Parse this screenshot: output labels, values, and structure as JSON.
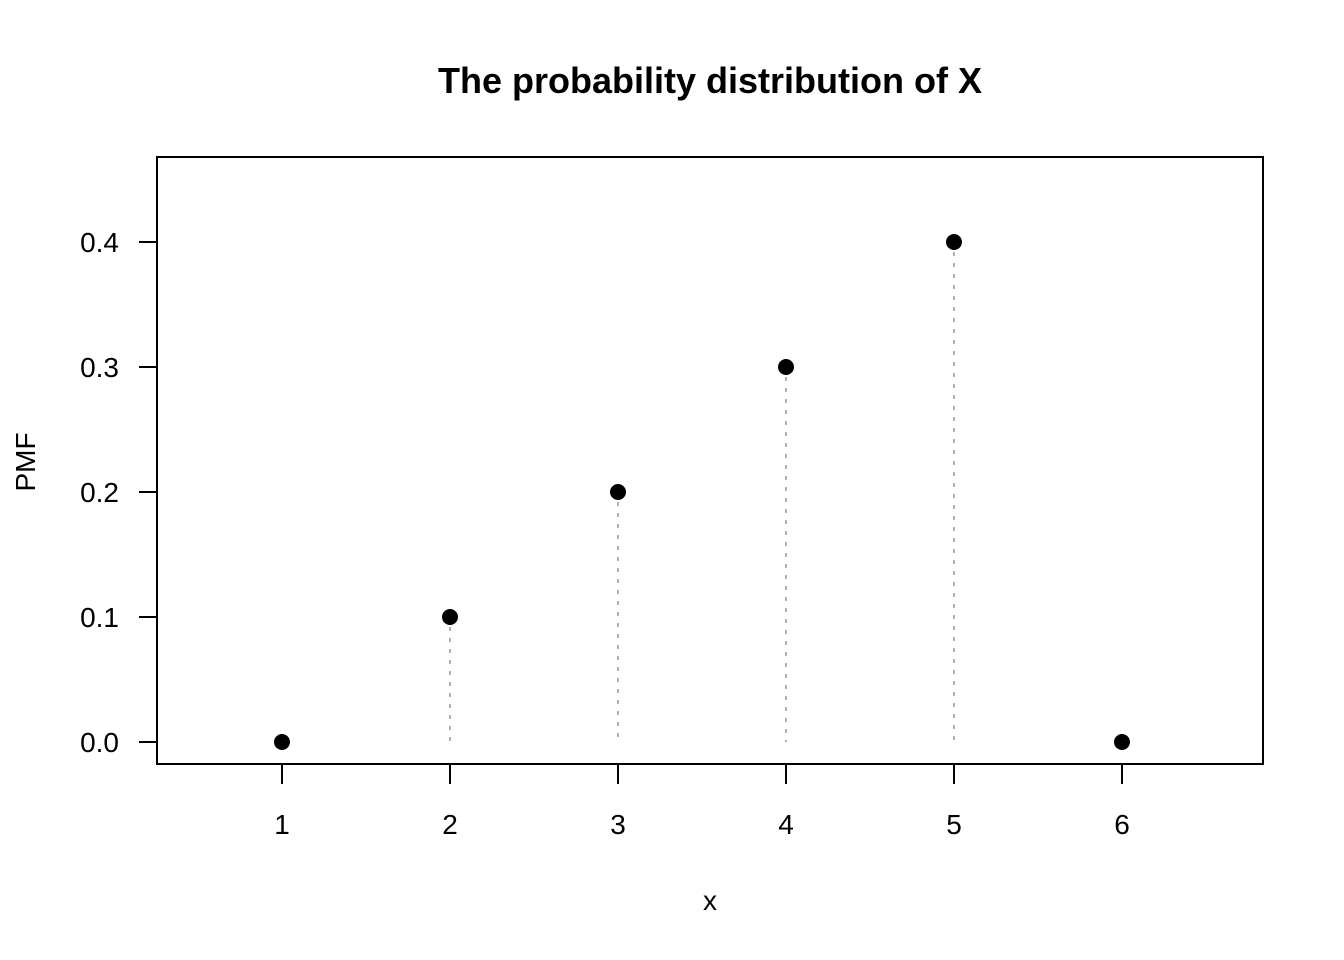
{
  "chart_data": {
    "type": "scatter",
    "subtype": "pmf-stem",
    "title": "The probability distribution of X",
    "xlabel": "x",
    "ylabel": "PMF",
    "x": [
      1,
      2,
      3,
      4,
      5,
      6
    ],
    "values": [
      0.0,
      0.1,
      0.2,
      0.3,
      0.4,
      0.0
    ],
    "xticks": [
      "1",
      "2",
      "3",
      "4",
      "5",
      "6"
    ],
    "yticks": [
      "0.0",
      "0.1",
      "0.2",
      "0.3",
      "0.4"
    ],
    "xlim": [
      0.25,
      6.85
    ],
    "ylim": [
      -0.018,
      0.468
    ],
    "grid": false,
    "legend": null,
    "point_color": "#000000",
    "stem_color": "#b0b0b0",
    "stem_style": "dotted"
  }
}
